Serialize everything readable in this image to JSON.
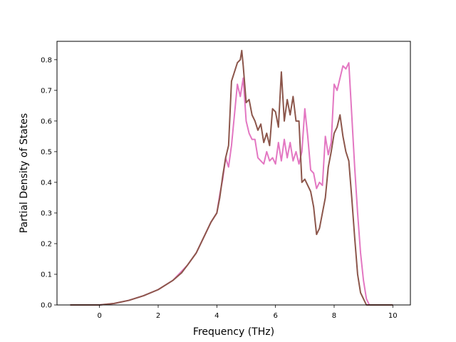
{
  "chart_data": {
    "type": "line",
    "title": "",
    "xlabel": "Frequency (THz)",
    "ylabel": "Partial Density of States",
    "xlim": [
      -1.45,
      10.6
    ],
    "ylim": [
      0.0,
      0.86
    ],
    "xticks": [
      0,
      2,
      4,
      6,
      8,
      10
    ],
    "yticks": [
      0.0,
      0.1,
      0.2,
      0.3,
      0.4,
      0.5,
      0.6,
      0.7,
      0.8
    ],
    "grid": false,
    "legend": "none",
    "series": [
      {
        "color": "#e377c2",
        "x": [
          -1.0,
          0.0,
          0.5,
          1.0,
          1.5,
          2.0,
          2.5,
          2.8,
          3.0,
          3.3,
          3.6,
          3.8,
          4.0,
          4.1,
          4.2,
          4.3,
          4.4,
          4.5,
          4.6,
          4.7,
          4.8,
          4.9,
          5.0,
          5.1,
          5.2,
          5.3,
          5.4,
          5.5,
          5.6,
          5.7,
          5.8,
          5.9,
          6.0,
          6.1,
          6.2,
          6.3,
          6.4,
          6.5,
          6.6,
          6.7,
          6.8,
          6.9,
          7.0,
          7.1,
          7.2,
          7.3,
          7.4,
          7.5,
          7.6,
          7.7,
          7.8,
          7.9,
          8.0,
          8.1,
          8.2,
          8.3,
          8.4,
          8.5,
          8.6,
          8.7,
          8.8,
          8.9,
          9.0,
          9.1,
          9.2,
          10.0
        ],
        "y": [
          0.0,
          0.0,
          0.005,
          0.015,
          0.03,
          0.05,
          0.08,
          0.11,
          0.13,
          0.17,
          0.23,
          0.27,
          0.3,
          0.36,
          0.41,
          0.48,
          0.45,
          0.52,
          0.62,
          0.72,
          0.68,
          0.74,
          0.6,
          0.56,
          0.54,
          0.54,
          0.48,
          0.47,
          0.46,
          0.5,
          0.47,
          0.48,
          0.46,
          0.53,
          0.47,
          0.54,
          0.48,
          0.53,
          0.47,
          0.5,
          0.46,
          0.5,
          0.64,
          0.55,
          0.44,
          0.43,
          0.38,
          0.4,
          0.39,
          0.55,
          0.49,
          0.53,
          0.72,
          0.7,
          0.74,
          0.78,
          0.77,
          0.79,
          0.62,
          0.45,
          0.3,
          0.17,
          0.08,
          0.02,
          0.0,
          0.0
        ]
      },
      {
        "color": "#8c564b",
        "x": [
          -1.0,
          0.0,
          0.5,
          1.0,
          1.5,
          2.0,
          2.5,
          2.8,
          3.0,
          3.3,
          3.6,
          3.8,
          4.0,
          4.1,
          4.2,
          4.3,
          4.4,
          4.5,
          4.6,
          4.7,
          4.8,
          4.85,
          4.9,
          5.0,
          5.1,
          5.2,
          5.3,
          5.4,
          5.5,
          5.6,
          5.7,
          5.8,
          5.9,
          6.0,
          6.1,
          6.2,
          6.3,
          6.4,
          6.5,
          6.6,
          6.7,
          6.8,
          6.9,
          7.0,
          7.1,
          7.2,
          7.3,
          7.4,
          7.5,
          7.6,
          7.7,
          7.8,
          7.9,
          8.0,
          8.1,
          8.2,
          8.3,
          8.4,
          8.5,
          8.6,
          8.7,
          8.8,
          8.9,
          9.0,
          9.1,
          9.2,
          10.0
        ],
        "y": [
          0.0,
          0.0,
          0.005,
          0.015,
          0.03,
          0.05,
          0.08,
          0.105,
          0.13,
          0.17,
          0.23,
          0.27,
          0.3,
          0.35,
          0.42,
          0.48,
          0.52,
          0.73,
          0.76,
          0.79,
          0.8,
          0.83,
          0.78,
          0.66,
          0.67,
          0.62,
          0.6,
          0.57,
          0.59,
          0.53,
          0.56,
          0.52,
          0.64,
          0.63,
          0.58,
          0.76,
          0.6,
          0.67,
          0.62,
          0.68,
          0.6,
          0.6,
          0.4,
          0.41,
          0.39,
          0.37,
          0.32,
          0.23,
          0.25,
          0.3,
          0.35,
          0.45,
          0.5,
          0.56,
          0.58,
          0.62,
          0.55,
          0.5,
          0.47,
          0.35,
          0.22,
          0.1,
          0.04,
          0.02,
          0.0,
          0.0,
          0.0
        ]
      }
    ]
  }
}
